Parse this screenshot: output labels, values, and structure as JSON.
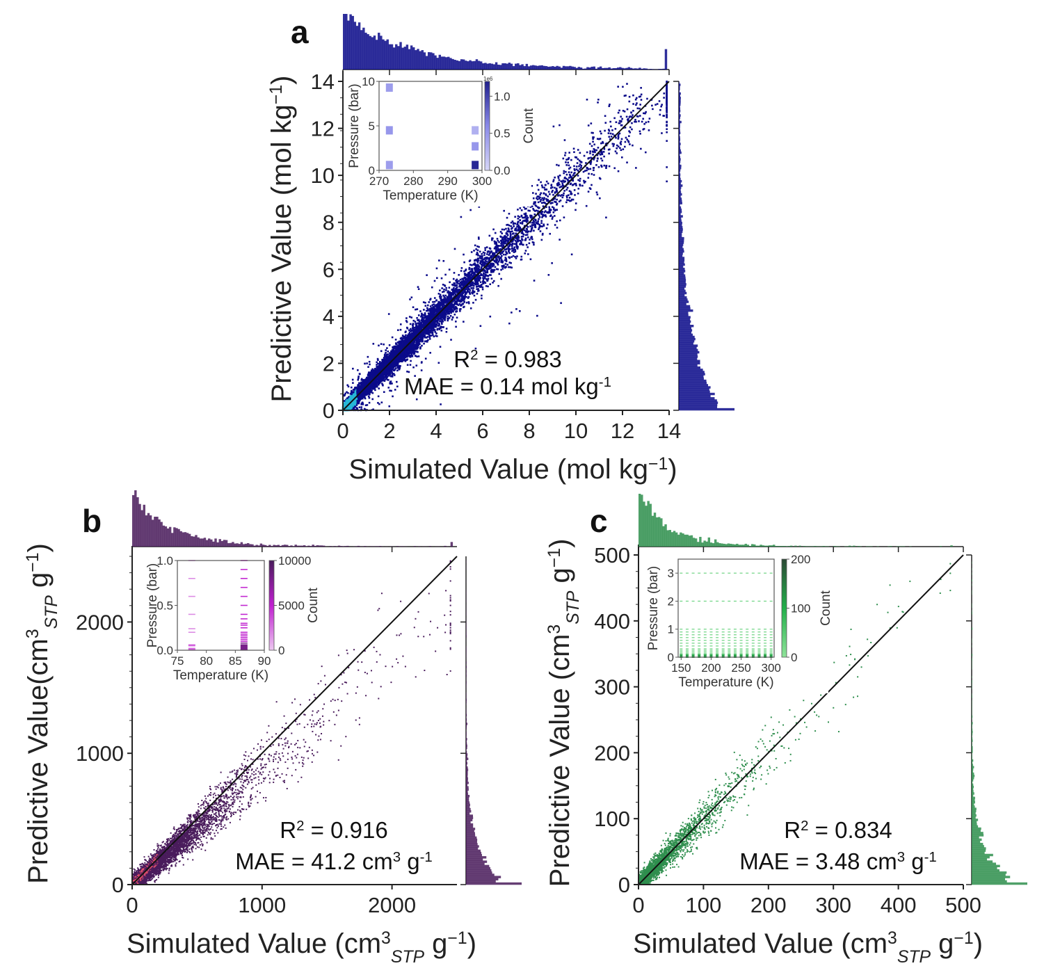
{
  "chart_data": [
    {
      "panel": "a",
      "type": "scatter",
      "subtype": "2d-density-with-marginal-histograms",
      "xlabel": [
        {
          "t": "Simulated Value (mol kg"
        },
        {
          "t": "−1",
          "sup": true
        },
        {
          "t": ")"
        }
      ],
      "ylabel": [
        {
          "t": "Predictive Value (mol kg"
        },
        {
          "t": "−1",
          "sup": true
        },
        {
          "t": ")"
        }
      ],
      "xlim": [
        0,
        14
      ],
      "ylim": [
        0,
        14
      ],
      "xticks": [
        "0",
        "2",
        "4",
        "6",
        "8",
        "10",
        "12",
        "14"
      ],
      "yticks": [
        "0",
        "2",
        "4",
        "6",
        "8",
        "10",
        "12",
        "14"
      ],
      "diagonal": "y = x",
      "r2": [
        {
          "t": "R"
        },
        {
          "t": "2",
          "sup": true
        },
        {
          "t": " = 0.983"
        }
      ],
      "mae": [
        {
          "t": "MAE = 0.14 mol kg"
        },
        {
          "t": "-1",
          "sup": true
        }
      ],
      "color": "#0b0b8a",
      "hot_color": "#27b7d8",
      "inset": {
        "type": "heatmap",
        "xlabel": "Temperature (K)",
        "ylabel": "Pressure (bar)",
        "xlim": [
          270,
          300
        ],
        "ylim": [
          0,
          10
        ],
        "xticks": [
          "270",
          "280",
          "290",
          "300"
        ],
        "yticks": [
          "0",
          "5",
          "10"
        ],
        "colorbar_label": "Count",
        "colorbar_ticks": [
          "0.0",
          "0.5",
          "1.0"
        ],
        "colorbar_scale": "1e6",
        "colorbar_max": 1.2,
        "cells": [
          {
            "T": 273,
            "P": 0.6,
            "count": 0.45
          },
          {
            "T": 273,
            "P": 4.5,
            "count": 0.5
          },
          {
            "T": 273,
            "P": 9.3,
            "count": 0.45
          },
          {
            "T": 298,
            "P": 0.6,
            "count": 1.15
          },
          {
            "T": 298,
            "P": 2.7,
            "count": 0.5
          },
          {
            "T": 298,
            "P": 4.5,
            "count": 0.3
          }
        ],
        "cmap": [
          "#d6d6f7",
          "#8a8ae8",
          "#1f1f8e"
        ]
      }
    },
    {
      "panel": "b",
      "type": "scatter",
      "subtype": "2d-density-with-marginal-histograms",
      "xlabel": [
        {
          "t": "Simulated Value (cm"
        },
        {
          "t": "3",
          "sup": true
        },
        {
          "t": "STP",
          "sub": true
        },
        {
          "t": " g"
        },
        {
          "t": "−1",
          "sup": true
        },
        {
          "t": ")"
        }
      ],
      "ylabel": [
        {
          "t": "Predictive Value(cm"
        },
        {
          "t": "3",
          "sup": true
        },
        {
          "t": "STP",
          "sub": true
        },
        {
          "t": " g"
        },
        {
          "t": "−1",
          "sup": true
        },
        {
          "t": ")"
        }
      ],
      "xlim": [
        0,
        2500
      ],
      "ylim": [
        0,
        2500
      ],
      "xticks": [
        "0",
        "1000",
        "2000"
      ],
      "yticks": [
        "0",
        "1000",
        "2000"
      ],
      "diagonal": "y = x",
      "r2": [
        {
          "t": "R"
        },
        {
          "t": "2",
          "sup": true
        },
        {
          "t": " = 0.916"
        }
      ],
      "mae": [
        {
          "t": "MAE = 41.2 cm"
        },
        {
          "t": "3",
          "sup": true
        },
        {
          "t": " g"
        },
        {
          "t": "-1",
          "sup": true
        }
      ],
      "color": "#4a1c5c",
      "hot_color": "#e0506a",
      "inset": {
        "type": "heatmap",
        "xlabel": "Temperature (K)",
        "ylabel": "Pressure (bar)",
        "xlim": [
          75,
          90
        ],
        "ylim": [
          0,
          1
        ],
        "xticks": [
          "75",
          "80",
          "85",
          "90"
        ],
        "yticks": [
          "0.0",
          "0.5",
          "1.0"
        ],
        "colorbar_label": "Count",
        "colorbar_ticks": [
          "0",
          "5000",
          "10000"
        ],
        "colorbar_scale": "",
        "colorbar_max": 10000,
        "rows": [
          {
            "T": 77.5,
            "P": [
              0.005,
              0.01,
              0.02,
              0.05,
              0.06,
              0.2,
              0.24,
              0.4,
              0.6,
              0.8,
              1.0
            ],
            "count": 3000
          },
          {
            "T": 86.5,
            "P": [
              0.005,
              0.01,
              0.02,
              0.03,
              0.04,
              0.05,
              0.06,
              0.08,
              0.1,
              0.12,
              0.14,
              0.16,
              0.18,
              0.2,
              0.25,
              0.28,
              0.3,
              0.35,
              0.4,
              0.5,
              0.6,
              0.7,
              0.8,
              0.9,
              1.0
            ],
            "count": 8000
          }
        ],
        "cmap": [
          "#ecc8f0",
          "#c020d0",
          "#4a1c5c"
        ]
      }
    },
    {
      "panel": "c",
      "type": "scatter",
      "subtype": "2d-density-with-marginal-histograms",
      "xlabel": [
        {
          "t": "Simulated Value (cm"
        },
        {
          "t": "3",
          "sup": true
        },
        {
          "t": "STP",
          "sub": true
        },
        {
          "t": " g"
        },
        {
          "t": "−1",
          "sup": true
        },
        {
          "t": ")"
        }
      ],
      "ylabel": [
        {
          "t": "Predictive Value (cm"
        },
        {
          "t": "3",
          "sup": true
        },
        {
          "t": "STP",
          "sub": true
        },
        {
          "t": " g"
        },
        {
          "t": "−1",
          "sup": true
        },
        {
          "t": ")"
        }
      ],
      "xlim": [
        0,
        500
      ],
      "ylim": [
        0,
        500
      ],
      "xticks": [
        "0",
        "100",
        "200",
        "300",
        "400",
        "500"
      ],
      "yticks": [
        "0",
        "100",
        "200",
        "300",
        "400",
        "500"
      ],
      "diagonal": "y = x",
      "r2": [
        {
          "t": "R"
        },
        {
          "t": "2",
          "sup": true
        },
        {
          "t": " = 0.834"
        }
      ],
      "mae": [
        {
          "t": "MAE = 3.48 cm"
        },
        {
          "t": "3",
          "sup": true
        },
        {
          "t": " g"
        },
        {
          "t": "-1",
          "sup": true
        }
      ],
      "color": "#2f8f4e",
      "hot_color": "#2f8f4e",
      "inset": {
        "type": "heatmap",
        "xlabel": "Temperature (K)",
        "ylabel": "Pressure (bar)",
        "xlim": [
          145,
          305
        ],
        "ylim": [
          0,
          3.5
        ],
        "xticks": [
          "150",
          "200",
          "250",
          "300"
        ],
        "yticks": [
          "0",
          "1",
          "2",
          "3"
        ],
        "colorbar_label": "Count",
        "colorbar_ticks": [
          "0",
          "100",
          "200"
        ],
        "colorbar_scale": "",
        "colorbar_max": 200,
        "grid_T": [
          150,
          300,
          10
        ],
        "grid_P": [
          0.05,
          0.1,
          0.15,
          0.2,
          0.25,
          0.3,
          0.4,
          0.5,
          0.6,
          0.7,
          0.8,
          0.9,
          1.0,
          2.0,
          3.0
        ],
        "cmap": [
          "#8fe39a",
          "#22b04a",
          "#2b4a35"
        ]
      }
    }
  ],
  "letters": [
    "a",
    "b",
    "c"
  ]
}
